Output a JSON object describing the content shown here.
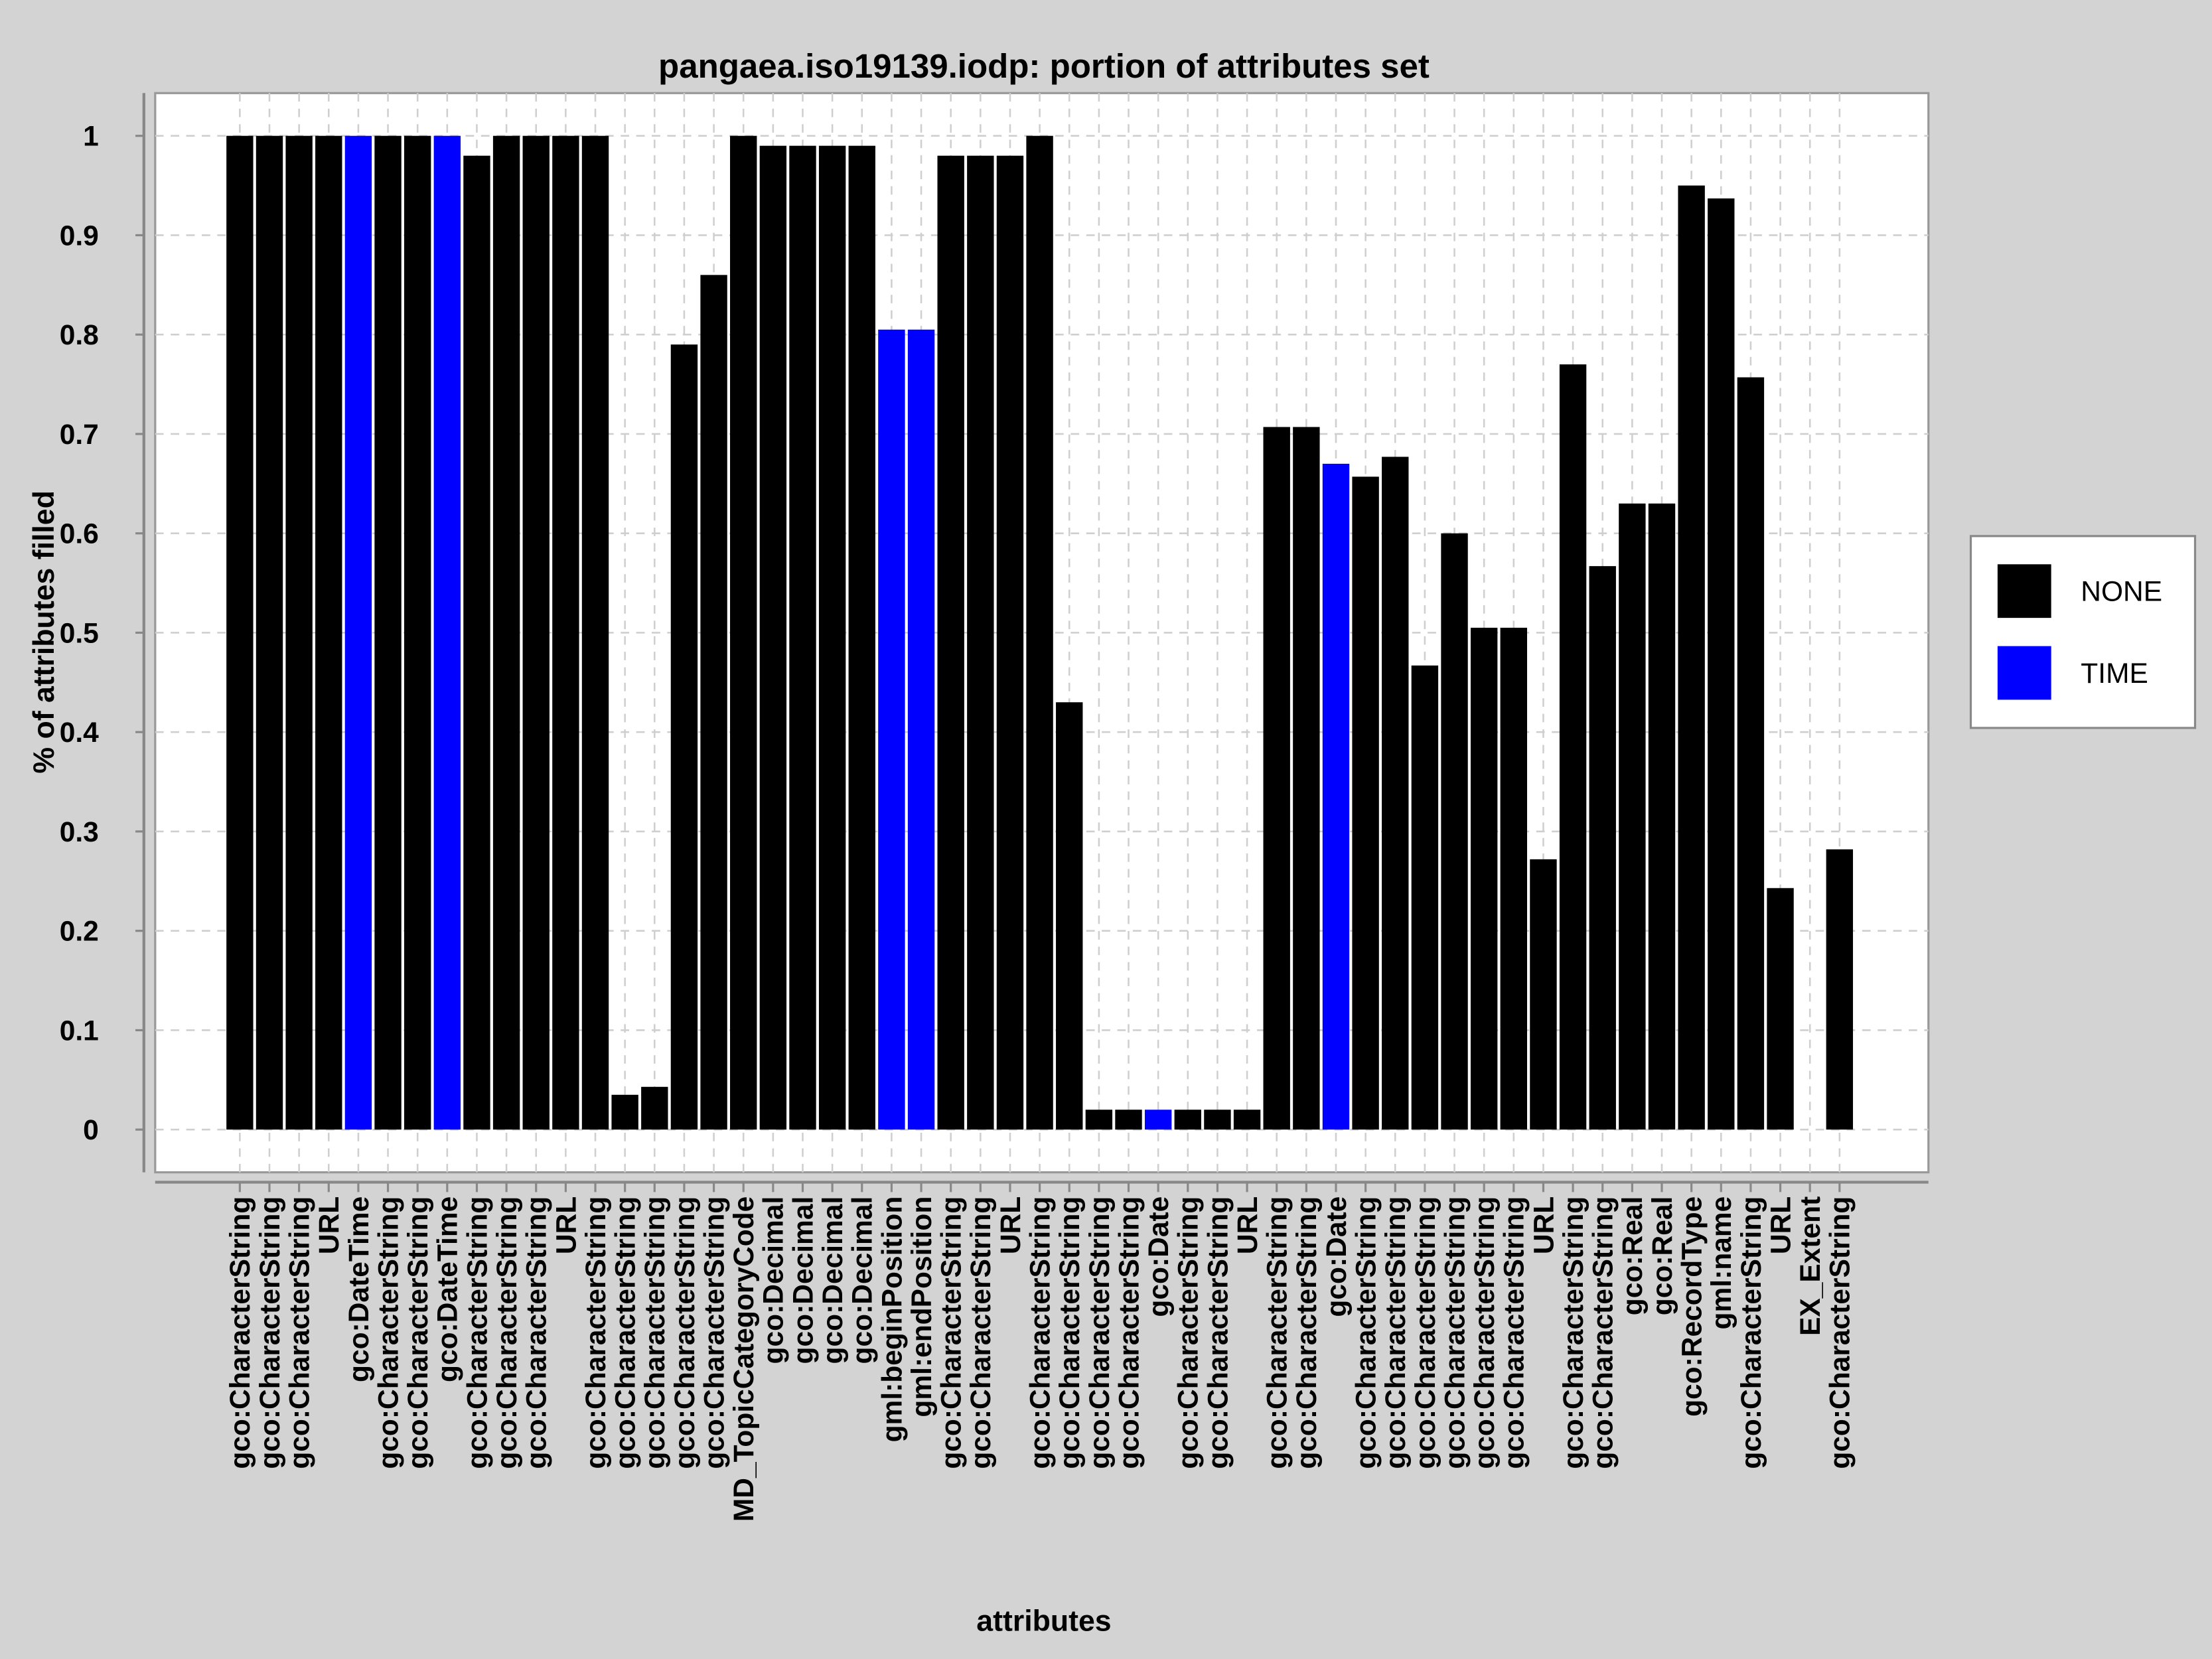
{
  "chart_data": {
    "type": "bar",
    "title": "pangaea.iso19139.iodp: portion of attributes set",
    "x_label": "attributes",
    "y_label": "% of attributes filled",
    "categories": [
      "gco:CharacterString",
      "gco:CharacterString",
      "gco:CharacterString",
      "URL",
      "gco:DateTime",
      "gco:CharacterString",
      "gco:CharacterString",
      "gco:DateTime",
      "gco:CharacterString",
      "gco:CharacterString",
      "gco:CharacterString",
      "URL",
      "gco:CharacterString",
      "gco:CharacterString",
      "gco:CharacterString",
      "gco:CharacterString",
      "gco:CharacterString",
      "MD_TopicCategoryCode",
      "gco:Decimal",
      "gco:Decimal",
      "gco:Decimal",
      "gco:Decimal",
      "gml:beginPosition",
      "gml:endPosition",
      "gco:CharacterString",
      "gco:CharacterString",
      "URL",
      "gco:CharacterString",
      "gco:CharacterString",
      "gco:CharacterString",
      "gco:CharacterString",
      "gco:Date",
      "gco:CharacterString",
      "gco:CharacterString",
      "URL",
      "gco:CharacterString",
      "gco:CharacterString",
      "gco:Date",
      "gco:CharacterString",
      "gco:CharacterString",
      "gco:CharacterString",
      "gco:CharacterString",
      "gco:CharacterString",
      "gco:CharacterString",
      "URL",
      "gco:CharacterString",
      "gco:CharacterString",
      "gco:Real",
      "gco:Real",
      "gco:RecordType",
      "gml:name",
      "gco:CharacterString",
      "URL",
      "EX_Extent",
      "gco:CharacterString"
    ],
    "series": [
      {
        "name": "NONE",
        "color": "#000000",
        "values": [
          1,
          1,
          1,
          1,
          null,
          1,
          1,
          null,
          0.98,
          1,
          1,
          1,
          1,
          0.035,
          0.043,
          0.79,
          0.86,
          1,
          0.99,
          0.99,
          0.99,
          0.99,
          null,
          null,
          0.98,
          0.98,
          0.98,
          1,
          0.43,
          0.02,
          0.02,
          null,
          0.02,
          0.02,
          0.02,
          0.707,
          0.707,
          null,
          0.657,
          0.677,
          0.467,
          0.6,
          0.505,
          0.505,
          0.272,
          0.77,
          0.567,
          0.63,
          0.63,
          0.95,
          0.937,
          0.757,
          0.243,
          0,
          0.282
        ]
      },
      {
        "name": "TIME",
        "color": "#0000ff",
        "values": [
          null,
          null,
          null,
          null,
          1,
          null,
          null,
          1,
          null,
          null,
          null,
          null,
          null,
          null,
          null,
          null,
          null,
          null,
          null,
          null,
          null,
          null,
          0.805,
          0.805,
          null,
          null,
          null,
          null,
          null,
          null,
          null,
          0.02,
          null,
          null,
          null,
          null,
          null,
          0.67,
          null,
          null,
          null,
          null,
          null,
          null,
          null,
          null,
          null,
          null,
          null,
          null,
          null,
          null,
          null,
          null,
          null
        ]
      }
    ],
    "ylim": [
      -0.043,
      1.043
    ],
    "yticks": [
      0,
      0.1,
      0.2,
      0.3,
      0.4,
      0.5,
      0.6,
      0.7,
      0.8,
      0.9,
      1
    ],
    "grid": true,
    "legend": "right"
  }
}
